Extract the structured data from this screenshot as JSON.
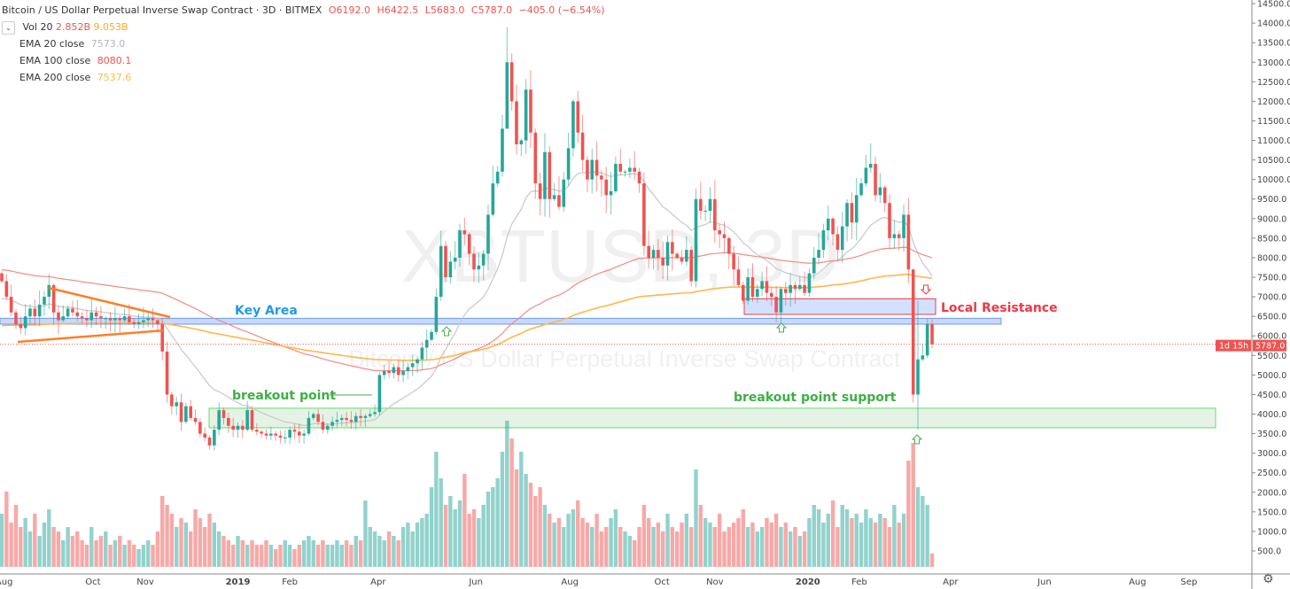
{
  "header": {
    "title": "Bitcoin / US Dollar Perpetual Inverse Swap Contract · 3D · BITMEX",
    "open": "O6192.0",
    "high": "H6422.5",
    "low": "L5683.0",
    "close": "C5787.0",
    "change": "−405.0 (−6.54%)"
  },
  "indicators": {
    "vol": {
      "label": "Vol 20",
      "value": "2.852B",
      "ma": "9.053B"
    },
    "ema20": {
      "label": "EMA 20 close",
      "value": "7573.0",
      "color": "#b2b5be"
    },
    "ema100": {
      "label": "EMA 100 close",
      "value": "8080.1",
      "color": "#ef5350"
    },
    "ema200": {
      "label": "EMA 200 close",
      "value": "7537.6",
      "color": "#ffb74d"
    }
  },
  "watermark": {
    "symbol": "XBTUSD, 3D",
    "name": "Bitcoin / US Dollar Perpetual Inverse Swap Contract"
  },
  "price_label": {
    "value": "5787.0",
    "countdown": "1d 15h"
  },
  "annotations": {
    "key_area": "Key Area",
    "local_resistance": "Local Resistance",
    "breakout_point": "breakout point",
    "breakout_support": "breakout point support"
  },
  "colors": {
    "up": "#26a69a",
    "down": "#ef5350",
    "key_area": "#2196f3",
    "support": "#4caf50",
    "resistance": "#f23645",
    "triangle": "#ff7f27"
  },
  "chart_data": {
    "type": "candlestick",
    "title": "Bitcoin / US Dollar Perpetual Inverse Swap Contract · 3D · BITMEX",
    "ylim": [
      0,
      14600
    ],
    "y_ticks": [
      500,
      1000,
      1500,
      2000,
      2500,
      3000,
      3500,
      4000,
      4500,
      5000,
      5500,
      6000,
      6500,
      7000,
      7500,
      8000,
      8500,
      9000,
      9500,
      10000,
      10500,
      11000,
      11500,
      12000,
      12500,
      13000,
      13500,
      14000,
      14500
    ],
    "x_ticks": [
      {
        "label": "Aug",
        "i": 0.5
      },
      {
        "label": "Oct",
        "i": 19.3
      },
      {
        "label": "Nov",
        "i": 30.4
      },
      {
        "label": "2019",
        "i": 50
      },
      {
        "label": "Feb",
        "i": 61
      },
      {
        "label": "Apr",
        "i": 79.7
      },
      {
        "label": "Jun",
        "i": 100.4
      },
      {
        "label": "Aug",
        "i": 120.3
      },
      {
        "label": "Oct",
        "i": 139.8
      },
      {
        "label": "Nov",
        "i": 151
      },
      {
        "label": "2020",
        "i": 170.7
      },
      {
        "label": "Feb",
        "i": 181.6
      },
      {
        "label": "Apr",
        "i": 200.9
      },
      {
        "label": "Jun",
        "i": 220.8
      },
      {
        "label": "Aug",
        "i": 240.5
      },
      {
        "label": "Sep",
        "i": 251.4
      }
    ],
    "closes": [
      7400,
      7000,
      6600,
      6300,
      6200,
      6500,
      6700,
      6500,
      6800,
      7000,
      7300,
      6600,
      6400,
      6500,
      6700,
      6600,
      6500,
      6450,
      6400,
      6600,
      6500,
      6450,
      6450,
      6400,
      6450,
      6400,
      6500,
      6350,
      6300,
      6350,
      6400,
      6450,
      6400,
      6300,
      5600,
      4500,
      4200,
      4300,
      3800,
      4200,
      3900,
      3800,
      3500,
      3400,
      3200,
      3600,
      4100,
      3900,
      3700,
      3600,
      3700,
      3600,
      4100,
      3600,
      3550,
      3500,
      3450,
      3500,
      3450,
      3400,
      3400,
      3600,
      3550,
      3450,
      3500,
      3900,
      4000,
      3800,
      3600,
      3700,
      3800,
      3850,
      3900,
      3850,
      3800,
      3950,
      3900,
      3950,
      4000,
      4050,
      5000,
      5100,
      5050,
      5200,
      5000,
      5100,
      5200,
      5300,
      5400,
      5700,
      5900,
      6100,
      7000,
      8300,
      7500,
      7900,
      8000,
      8700,
      8600,
      8100,
      7700,
      7800,
      8100,
      9100,
      9900,
      10200,
      11300,
      13000,
      12000,
      10900,
      11000,
      12300,
      11200,
      9900,
      9500,
      10700,
      9500,
      9600,
      9300,
      10000,
      10800,
      12000,
      11200,
      10500,
      10000,
      10500,
      10100,
      10000,
      9600,
      9700,
      10400,
      10200,
      10200,
      10300,
      10200,
      9900,
      8300,
      8000,
      8200,
      8000,
      7800,
      8400,
      8100,
      8000,
      7900,
      8200,
      7400,
      9500,
      9200,
      9200,
      9500,
      8700,
      8600,
      8500,
      8100,
      7700,
      7300,
      6900,
      7500,
      7000,
      7200,
      7400,
      7100,
      7000,
      6600,
      7200,
      7100,
      7300,
      7200,
      7300,
      7100,
      7600,
      8000,
      8200,
      8700,
      9000,
      8600,
      8200,
      8800,
      9400,
      8900,
      9600,
      9900,
      10300,
      10400,
      9600,
      9800,
      9400,
      8500,
      8600,
      8500,
      9100,
      7700,
      4500,
      5400,
      5500,
      6300,
      5787
    ],
    "volume_billions": [
      12,
      17,
      10,
      14,
      9,
      11,
      8,
      12,
      7,
      10,
      13,
      9,
      8,
      6,
      9,
      7,
      8,
      6,
      5,
      9,
      6,
      7,
      8,
      5,
      6,
      7,
      5,
      6,
      5,
      4,
      5,
      6,
      5,
      8,
      16,
      14,
      12,
      9,
      11,
      10,
      8,
      13,
      11,
      9,
      12,
      10,
      8,
      7,
      6,
      5,
      7,
      6,
      5,
      6,
      5,
      5,
      6,
      5,
      4,
      5,
      6,
      5,
      4,
      5,
      6,
      7,
      6,
      5,
      6,
      5,
      5,
      6,
      5,
      6,
      5,
      7,
      6,
      15,
      9,
      8,
      7,
      6,
      8,
      7,
      6,
      9,
      10,
      8,
      10,
      11,
      12,
      18,
      26,
      20,
      14,
      16,
      13,
      15,
      21,
      12,
      13,
      11,
      14,
      17,
      18,
      20,
      26,
      33,
      29,
      22,
      26,
      21,
      19,
      16,
      18,
      14,
      12,
      10,
      11,
      9,
      12,
      13,
      15,
      11,
      10,
      9,
      12,
      8,
      9,
      11,
      13,
      9,
      8,
      7,
      6,
      9,
      14,
      11,
      9,
      10,
      8,
      12,
      9,
      8,
      10,
      12,
      9,
      22,
      14,
      11,
      10,
      9,
      12,
      8,
      9,
      10,
      11,
      13,
      9,
      10,
      8,
      9,
      11,
      10,
      12,
      9,
      10,
      8,
      9,
      7,
      8,
      11,
      14,
      13,
      10,
      12,
      15,
      9,
      14,
      13,
      11,
      12,
      10,
      13,
      11,
      10,
      12,
      11,
      9,
      14,
      10,
      12,
      24,
      28,
      18,
      16,
      14,
      3
    ],
    "special_wicks": {
      "107": [
        13900,
        11300
      ],
      "197": [
        6422.5,
        5683
      ],
      "194": [
        6900,
        3600
      ],
      "193": [
        7700,
        4300
      ]
    },
    "ema_seed": {
      "ema20": 6900,
      "ema100": 7700,
      "ema200": 6250
    },
    "zones": {
      "key_area": [
        6300,
        6450
      ],
      "local_resistance": [
        6550,
        6950
      ],
      "breakout_support": [
        3650,
        4150
      ]
    },
    "last_price": 5787
  }
}
